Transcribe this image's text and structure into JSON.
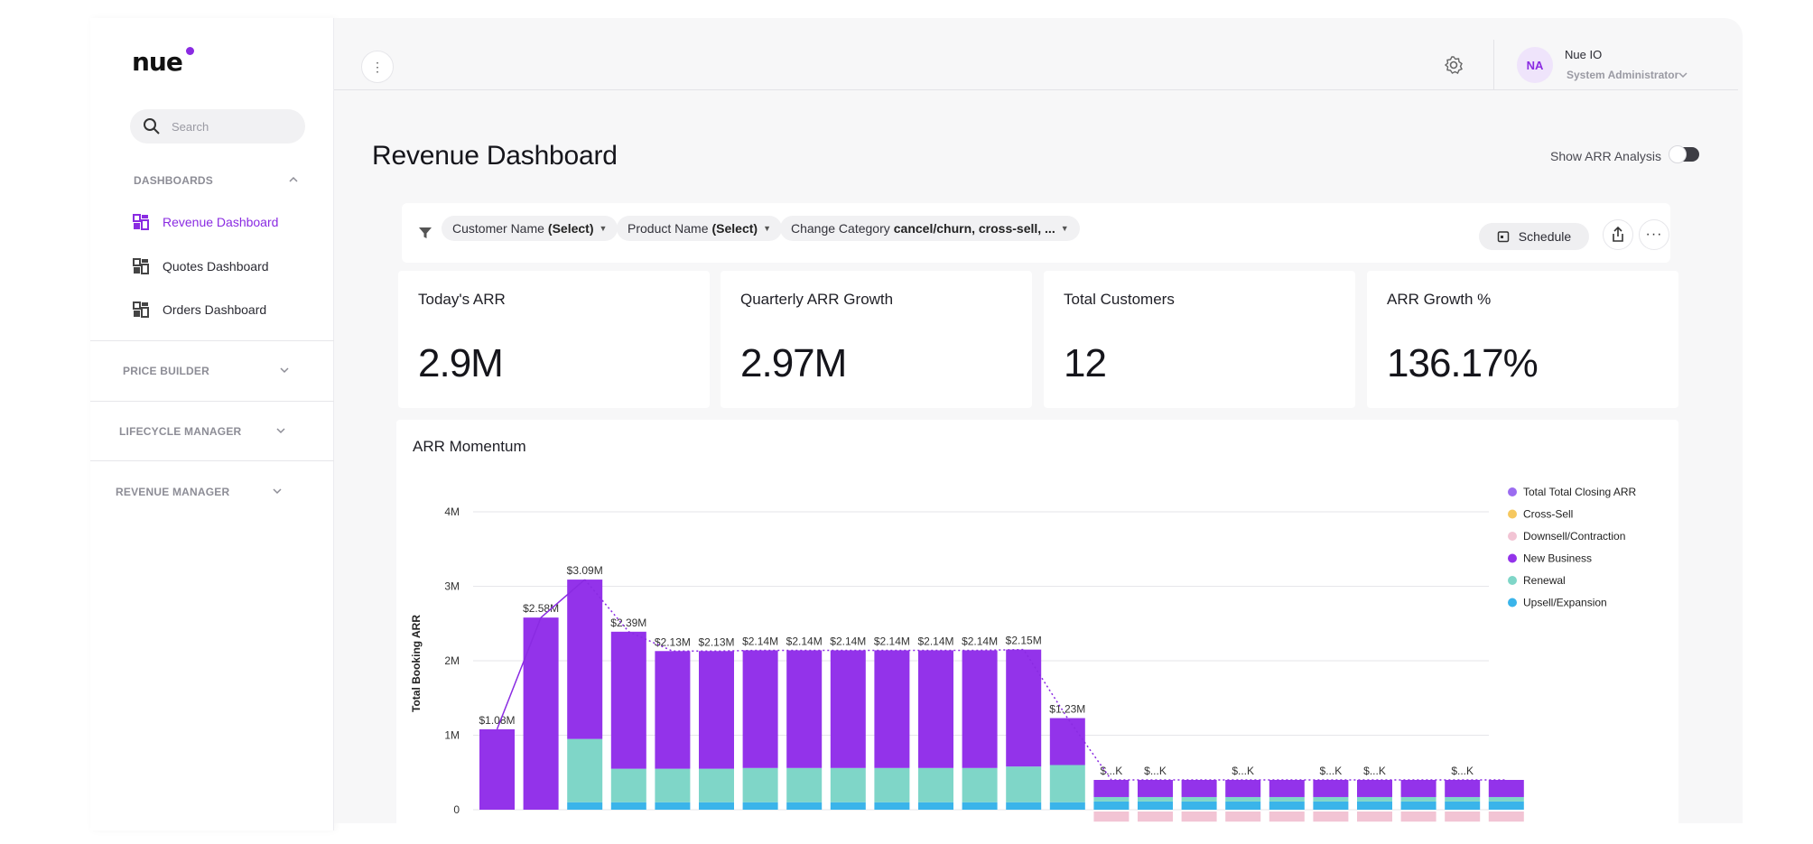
{
  "brand": {
    "name": "nue",
    "accent": "#8a2be2"
  },
  "search": {
    "placeholder": "Search"
  },
  "sidebar": {
    "dashboards_label": "DASHBOARDS",
    "items": [
      {
        "label": "Revenue Dashboard",
        "active": true
      },
      {
        "label": "Quotes Dashboard",
        "active": false
      },
      {
        "label": "Orders Dashboard",
        "active": false
      }
    ],
    "sections": [
      {
        "label": "PRICE BUILDER"
      },
      {
        "label": "LIFECYCLE MANAGER"
      },
      {
        "label": "REVENUE MANAGER"
      }
    ]
  },
  "header": {
    "user_initials": "NA",
    "user_name": "Nue IO",
    "user_role": "System Administrator"
  },
  "page": {
    "title": "Revenue Dashboard",
    "arr_toggle_label": "Show ARR Analysis",
    "arr_toggle_on": false
  },
  "filters": [
    {
      "name": "Customer Name",
      "value": "(Select)"
    },
    {
      "name": "Product Name",
      "value": "(Select)"
    },
    {
      "name": "Change Category",
      "value": "cancel/churn, cross-sell, ..."
    }
  ],
  "toolbar": {
    "schedule_label": "Schedule"
  },
  "kpis": [
    {
      "label": "Today's ARR",
      "value": "2.9M"
    },
    {
      "label": "Quarterly ARR Growth",
      "value": "2.97M"
    },
    {
      "label": "Total Customers",
      "value": "12"
    },
    {
      "label": "ARR Growth %",
      "value": "136.17%"
    }
  ],
  "chart_data": {
    "type": "bar",
    "title": "ARR Momentum",
    "ylabel": "Total Booking ARR",
    "ylim": [
      0,
      4000000
    ],
    "yticks": [
      "0",
      "1M",
      "2M",
      "3M",
      "4M"
    ],
    "colors": {
      "Total Total Closing ARR": "#9b6cf0",
      "Cross-Sell": "#f6c85f",
      "Downsell/Contraction": "#f2c4d4",
      "New Business": "#9333ea",
      "Renewal": "#7fd6c8",
      "Upsell/Expansion": "#3ab4ea"
    },
    "legend": [
      "Total Total Closing ARR",
      "Cross-Sell",
      "Downsell/Contraction",
      "New Business",
      "Renewal",
      "Upsell/Expansion"
    ],
    "bar_labels": [
      "$1.08M",
      "$2.58M",
      "$3.09M",
      "$2.39M",
      "$2.13M",
      "$2.13M",
      "$2.14M",
      "$2.14M",
      "$2.14M",
      "$2.14M",
      "$2.14M",
      "$2.14M",
      "$2.15M",
      "$1.23M",
      "$...K",
      "$...K",
      "",
      "$...K",
      "",
      "$...K",
      "$...K",
      "",
      "$...K",
      ""
    ],
    "series": [
      {
        "name": "Upsell/Expansion",
        "values": [
          0,
          0,
          100000,
          100000,
          100000,
          100000,
          100000,
          100000,
          100000,
          100000,
          100000,
          100000,
          100000,
          100000,
          110000,
          110000,
          110000,
          110000,
          110000,
          110000,
          110000,
          110000,
          110000,
          110000
        ]
      },
      {
        "name": "Renewal",
        "values": [
          0,
          0,
          850000,
          450000,
          450000,
          450000,
          460000,
          460000,
          460000,
          460000,
          460000,
          460000,
          480000,
          500000,
          60000,
          60000,
          60000,
          60000,
          60000,
          60000,
          60000,
          60000,
          60000,
          60000
        ]
      },
      {
        "name": "New Business",
        "values": [
          1080000,
          2580000,
          2140000,
          1840000,
          1580000,
          1580000,
          1580000,
          1580000,
          1580000,
          1580000,
          1580000,
          1580000,
          1570000,
          630000,
          230000,
          230000,
          230000,
          230000,
          230000,
          230000,
          230000,
          230000,
          230000,
          230000
        ]
      },
      {
        "name": "Downsell/Contraction",
        "values": [
          0,
          0,
          0,
          0,
          0,
          0,
          0,
          0,
          0,
          0,
          0,
          0,
          0,
          0,
          -160000,
          -160000,
          -160000,
          -160000,
          -160000,
          -160000,
          -160000,
          -160000,
          -160000,
          -160000
        ]
      }
    ],
    "total_line": [
      1080000,
      2580000,
      3090000,
      2390000,
      2130000,
      2130000,
      2140000,
      2140000,
      2140000,
      2140000,
      2140000,
      2140000,
      2150000,
      1230000,
      400000,
      400000,
      400000,
      400000,
      400000,
      400000,
      400000,
      400000,
      400000,
      400000
    ]
  }
}
